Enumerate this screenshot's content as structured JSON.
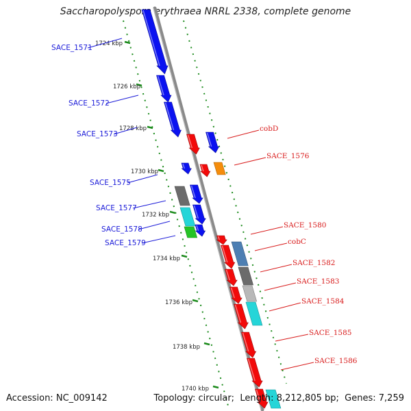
{
  "title": "Saccharopolyspora erythraea NRRL 2338, complete genome",
  "footer": {
    "accession_label": "Accession:",
    "accession": "NC_009142",
    "topology_label": "Topology:",
    "topology": "circular",
    "length_label": "Length:",
    "length": "8,212,805 bp",
    "genes_label": "Genes:",
    "genes": "7,259"
  },
  "ticks": [
    "1724 kbp",
    "1726 kbp",
    "1728 kbp",
    "1730 kbp",
    "1732 kbp",
    "1734 kbp",
    "1736 kbp",
    "1738 kbp",
    "1740 kbp"
  ],
  "gene_labels": {
    "left": [
      "SACE_1571",
      "SACE_1572",
      "SACE_1573",
      "SACE_1575",
      "SACE_1577",
      "SACE_1578",
      "SACE_1579"
    ],
    "right": [
      "cobD",
      "SACE_1576",
      "SACE_1580",
      "cobC",
      "SACE_1582",
      "SACE_1583",
      "SACE_1584",
      "SACE_1585",
      "SACE_1586"
    ]
  },
  "colors": {
    "blue": "#0b12f0",
    "red": "#f20a0a",
    "orange": "#f58d0c",
    "steel": "#4d7fb3",
    "darkgray": "#6b6b6b",
    "lightgray": "#b8b8b8",
    "cyan": "#25d5d8",
    "green": "#25c425",
    "label_left": "#1a1ad8",
    "label_right": "#d81a1a",
    "tick": "#1a8a1a",
    "backbone": "#8a8a8a"
  }
}
